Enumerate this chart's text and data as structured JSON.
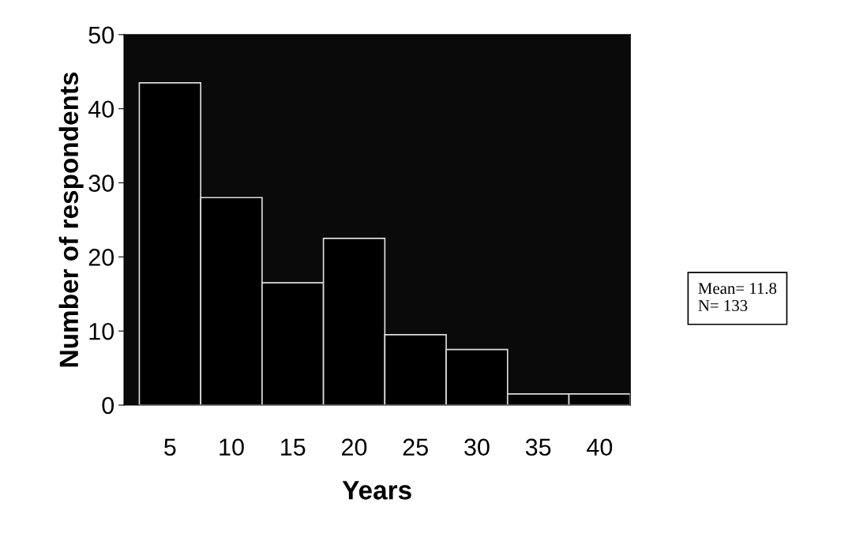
{
  "chart_data": {
    "type": "bar",
    "xlabel": "Years",
    "ylabel": "Number of respondents",
    "categories": [
      "5",
      "10",
      "15",
      "20",
      "25",
      "30",
      "35",
      "40"
    ],
    "values": [
      43.5,
      28,
      16.5,
      22.5,
      9.5,
      7.5,
      1.5,
      1.5
    ],
    "color": "#000000",
    "ylim": [
      0,
      50
    ],
    "yticks": [
      0,
      10,
      20,
      30,
      40,
      50
    ],
    "grid": false,
    "annotations": [
      "Mean= 11.8\nN= 133"
    ]
  }
}
